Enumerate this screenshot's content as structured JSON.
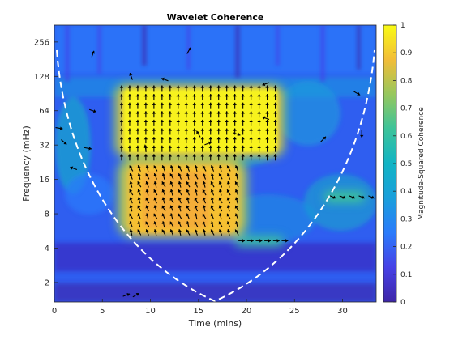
{
  "chart_data": {
    "type": "heatmap",
    "title": "Wavelet Coherence",
    "xlabel": "Time (mins)",
    "ylabel": "Frequency (mHz)",
    "xlim": [
      0,
      33.5
    ],
    "ylim": [
      1.35,
      360
    ],
    "y_scale": "log2",
    "x_ticks": [
      0,
      5,
      10,
      15,
      20,
      25,
      30
    ],
    "x_tick_labels": [
      "0",
      "5",
      "10",
      "15",
      "20",
      "25",
      "30"
    ],
    "y_ticks": [
      2,
      4,
      8,
      16,
      32,
      64,
      128,
      256
    ],
    "y_tick_labels": [
      "2",
      "4",
      "8",
      "16",
      "32",
      "64",
      "128",
      "256"
    ],
    "colormap": "parula",
    "colorbar": {
      "label": "Magnitude-Squared Coherence",
      "ticks": [
        0,
        0.1,
        0.2,
        0.3,
        0.4,
        0.5,
        0.6,
        0.7,
        0.8,
        0.9,
        1
      ],
      "tick_labels": [
        "0",
        "0.1",
        "0.2",
        "0.3",
        "0.4",
        "0.5",
        "0.6",
        "0.7",
        "0.8",
        "0.9",
        "1"
      ]
    },
    "high_coherence_regions": [
      {
        "t_range": [
          7,
          23
        ],
        "f_range": [
          25,
          100
        ],
        "coherence": 0.95,
        "phase_arrow": "up"
      },
      {
        "t_range": [
          8,
          19
        ],
        "f_range": [
          5.5,
          20
        ],
        "coherence": 0.85,
        "phase_arrow": "up-left"
      },
      {
        "t_range": [
          19.5,
          24
        ],
        "f_range": [
          4.4,
          4.9
        ],
        "coherence": 0.55,
        "phase_arrow": "right"
      },
      {
        "t_range": [
          29,
          33
        ],
        "f_range": [
          10.5,
          12
        ],
        "coherence": 0.5,
        "phase_arrow": "down-right"
      }
    ],
    "cone_of_influence": {
      "style": "dashed",
      "color": "#ffffff",
      "apex_time": 16.75,
      "apex_frequency": 1.35
    }
  }
}
